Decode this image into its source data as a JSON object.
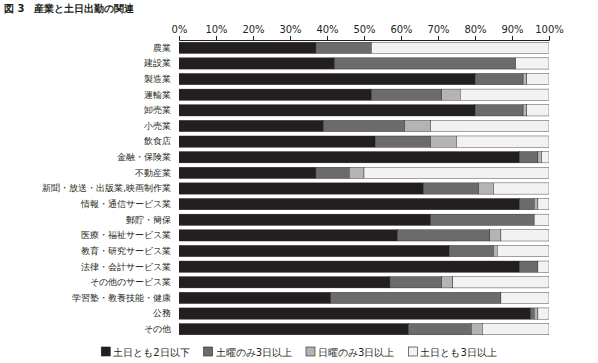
{
  "chart_data": {
    "type": "bar",
    "orientation": "horizontal",
    "stacked": true,
    "title": "図 3　産業と土日出勤の関連",
    "categories": [
      "農業",
      "建設業",
      "製造業",
      "運輸業",
      "卸売業",
      "小売業",
      "飲食店",
      "金融・保険業",
      "不動産業",
      "新聞・放送・出版業,映画制作業",
      "情報・通信サービス業",
      "郵貯・簡保",
      "医療・福祉サービス業",
      "教育・研究サービス業",
      "法律・会計サービス業",
      "その他のサービス業",
      "学習塾・教養技能・健康",
      "公務",
      "その他"
    ],
    "series": [
      {
        "name": "土日とも2日以下",
        "color": "#231f20",
        "values": [
          37,
          42,
          80,
          52,
          80,
          39,
          53,
          92,
          37,
          66,
          92,
          68,
          59,
          73,
          92,
          57,
          41,
          95,
          62
        ]
      },
      {
        "name": "土曜のみ3日以上",
        "color": "#6b6b6b",
        "values": [
          15,
          49,
          13,
          19,
          13,
          22,
          15,
          5,
          9,
          15,
          4,
          28,
          25,
          12,
          5,
          14,
          46,
          1,
          17
        ]
      },
      {
        "name": "日曜のみ3日以上",
        "color": "#b4b4b4",
        "values": [
          0,
          0,
          1,
          5,
          1,
          7,
          7,
          1,
          4,
          4,
          1,
          0,
          3,
          1,
          0,
          3,
          0,
          1,
          3
        ]
      },
      {
        "name": "土日とも3日以上",
        "color": "#f2f2f2",
        "values": [
          48,
          9,
          6,
          24,
          6,
          32,
          25,
          2,
          50,
          15,
          3,
          4,
          13,
          14,
          3,
          26,
          13,
          3,
          18
        ]
      }
    ],
    "xlim": [
      0,
      100
    ],
    "xticks": [
      {
        "value": 0,
        "label": "0%"
      },
      {
        "value": 10,
        "label": "10%"
      },
      {
        "value": 20,
        "label": "20%"
      },
      {
        "value": 30,
        "label": "30%"
      },
      {
        "value": 40,
        "label": "40%"
      },
      {
        "value": 50,
        "label": "50%"
      },
      {
        "value": 60,
        "label": "60%"
      },
      {
        "value": 70,
        "label": "70%"
      },
      {
        "value": 80,
        "label": "80%"
      },
      {
        "value": 90,
        "label": "90%"
      },
      {
        "value": 100,
        "label": "100%"
      }
    ],
    "legend": "bottom"
  }
}
